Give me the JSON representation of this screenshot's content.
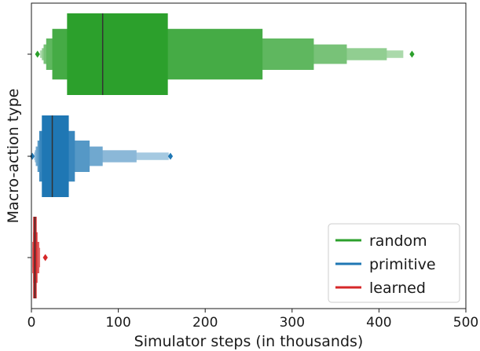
{
  "chart_data": {
    "type": "boxen",
    "orientation": "horizontal",
    "xlabel": "Simulator steps (in thousands)",
    "ylabel": "Macro-action type",
    "xlim": [
      0,
      500
    ],
    "xticks": [
      0,
      100,
      200,
      300,
      400,
      500
    ],
    "grid": false,
    "legend_position": "bottom-right",
    "series": [
      {
        "name": "random",
        "color": "#2ca02c",
        "median": 82,
        "boxes": [
          [
            41,
            157
          ],
          [
            24,
            266
          ],
          [
            17,
            325
          ],
          [
            14,
            363
          ],
          [
            12,
            409
          ],
          [
            10,
            428
          ]
        ],
        "outliers": [
          7,
          438
        ]
      },
      {
        "name": "primitive",
        "color": "#1f77b4",
        "median": 24,
        "boxes": [
          [
            12,
            43
          ],
          [
            9,
            50
          ],
          [
            7,
            67
          ],
          [
            5,
            82
          ],
          [
            4,
            121
          ],
          [
            3,
            158
          ]
        ],
        "outliers": [
          1,
          160
        ]
      },
      {
        "name": "learned",
        "color": "#d62728",
        "median": 4,
        "boxes": [
          [
            2,
            6
          ],
          [
            2,
            7
          ],
          [
            1,
            9
          ],
          [
            1,
            10
          ]
        ],
        "outliers": [
          16
        ]
      }
    ]
  }
}
